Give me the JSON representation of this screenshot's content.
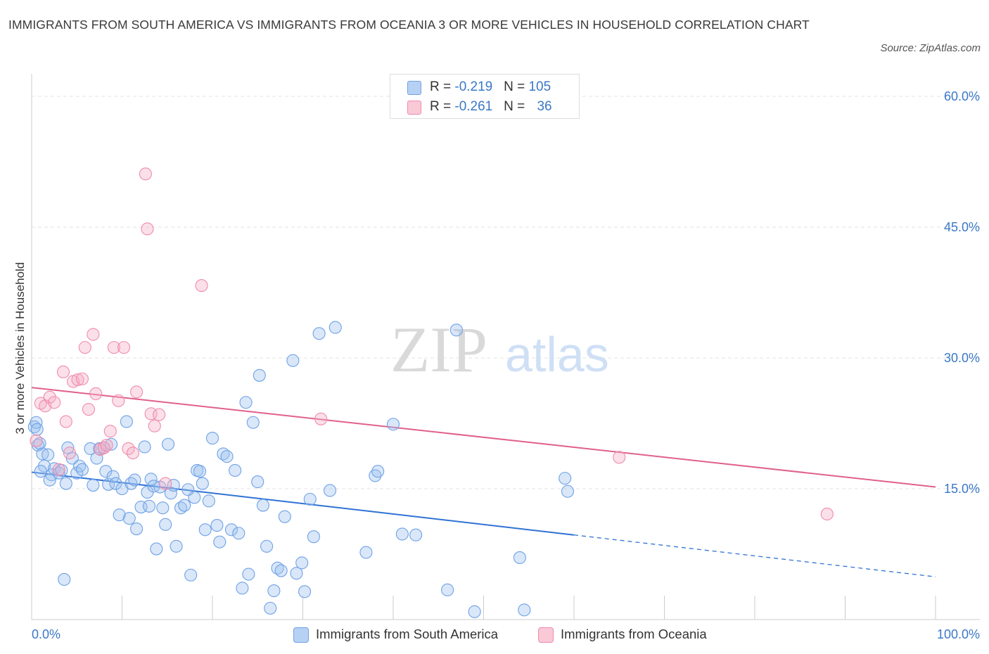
{
  "header": {
    "title": "IMMIGRANTS FROM SOUTH AMERICA VS IMMIGRANTS FROM OCEANIA 3 OR MORE VEHICLES IN HOUSEHOLD CORRELATION CHART",
    "source": "Source: ZipAtlas.com"
  },
  "watermark": {
    "zip": "ZIP",
    "atlas": "atlas"
  },
  "legend": {
    "rows": [
      {
        "r_label": "R = ",
        "r_value": "-0.219",
        "n_label": "N = ",
        "n_value": "105",
        "color": "#9bbff0"
      },
      {
        "r_label": "R = ",
        "r_value": "-0.261",
        "n_label": "N = ",
        "n_value": "36",
        "color": "#f5aec4"
      }
    ]
  },
  "bottom_legend": {
    "items": [
      {
        "label": "Immigrants from South America",
        "color": "#9bbff0"
      },
      {
        "label": "Immigrants from Oceania",
        "color": "#f5aec4"
      }
    ]
  },
  "chart_data": {
    "type": "scatter",
    "title": "IMMIGRANTS FROM SOUTH AMERICA VS IMMIGRANTS FROM OCEANIA 3 OR MORE VEHICLES IN HOUSEHOLD CORRELATION CHART",
    "xlabel": "",
    "ylabel": "3 or more Vehicles in Household",
    "xlim": [
      0,
      100
    ],
    "ylim": [
      0,
      60
    ],
    "x_tick_labels": [
      "0.0%",
      "100.0%"
    ],
    "y_ticks": [
      15,
      30,
      45,
      60
    ],
    "y_tick_labels": [
      "15.0%",
      "30.0%",
      "45.0%",
      "60.0%"
    ],
    "grid": true,
    "legend_position": "top-center",
    "series": [
      {
        "name": "Immigrants from South America",
        "color": "#6fa2e6",
        "r": -0.219,
        "n": 105,
        "trend": {
          "x0": 0,
          "y0": 16.9,
          "x1": 60,
          "y1": 9.7,
          "dashed_to_x": 100,
          "dashed_to_y": 4.9
        },
        "points": [
          [
            0.3,
            22.1
          ],
          [
            0.5,
            22.6
          ],
          [
            0.6,
            21.8
          ],
          [
            0.7,
            20.0
          ],
          [
            0.9,
            20.2
          ],
          [
            1.2,
            19.0
          ],
          [
            1.4,
            17.6
          ],
          [
            1.8,
            18.9
          ],
          [
            2.2,
            16.6
          ],
          [
            2.5,
            17.3
          ],
          [
            3.0,
            16.8
          ],
          [
            3.3,
            17.1
          ],
          [
            3.8,
            15.6
          ],
          [
            4.0,
            19.7
          ],
          [
            4.5,
            18.5
          ],
          [
            5.0,
            16.8
          ],
          [
            5.3,
            17.6
          ],
          [
            5.6,
            17.2
          ],
          [
            6.5,
            19.6
          ],
          [
            6.8,
            15.4
          ],
          [
            7.2,
            18.5
          ],
          [
            7.5,
            19.6
          ],
          [
            8.0,
            19.7
          ],
          [
            8.2,
            17.0
          ],
          [
            8.5,
            15.5
          ],
          [
            9.0,
            16.4
          ],
          [
            9.3,
            15.6
          ],
          [
            9.7,
            12.0
          ],
          [
            10.0,
            15.0
          ],
          [
            10.5,
            22.7
          ],
          [
            10.8,
            11.6
          ],
          [
            11.0,
            15.6
          ],
          [
            11.4,
            16.0
          ],
          [
            11.6,
            10.4
          ],
          [
            12.1,
            12.9
          ],
          [
            12.5,
            19.8
          ],
          [
            12.8,
            14.6
          ],
          [
            13.0,
            13.0
          ],
          [
            13.2,
            16.1
          ],
          [
            13.5,
            15.3
          ],
          [
            13.8,
            8.1
          ],
          [
            14.2,
            15.2
          ],
          [
            14.5,
            12.8
          ],
          [
            14.8,
            10.9
          ],
          [
            15.1,
            20.1
          ],
          [
            15.4,
            14.5
          ],
          [
            15.7,
            15.4
          ],
          [
            16.0,
            8.4
          ],
          [
            16.5,
            12.8
          ],
          [
            16.9,
            13.1
          ],
          [
            17.3,
            14.9
          ],
          [
            17.6,
            5.1
          ],
          [
            18.0,
            14.0
          ],
          [
            18.3,
            17.1
          ],
          [
            18.6,
            17.0
          ],
          [
            18.9,
            15.6
          ],
          [
            19.2,
            10.3
          ],
          [
            19.6,
            13.6
          ],
          [
            20.0,
            20.8
          ],
          [
            20.5,
            10.8
          ],
          [
            20.8,
            8.9
          ],
          [
            21.2,
            19.0
          ],
          [
            21.6,
            18.7
          ],
          [
            22.1,
            10.3
          ],
          [
            22.5,
            17.1
          ],
          [
            22.9,
            9.9
          ],
          [
            23.3,
            3.6
          ],
          [
            23.7,
            24.9
          ],
          [
            24.0,
            5.2
          ],
          [
            24.5,
            22.6
          ],
          [
            25.0,
            15.8
          ],
          [
            25.2,
            28.0
          ],
          [
            25.6,
            13.1
          ],
          [
            26.0,
            8.4
          ],
          [
            26.4,
            1.3
          ],
          [
            26.8,
            3.3
          ],
          [
            27.2,
            5.9
          ],
          [
            27.6,
            5.6
          ],
          [
            28.0,
            11.8
          ],
          [
            28.9,
            29.7
          ],
          [
            29.3,
            5.3
          ],
          [
            29.9,
            6.5
          ],
          [
            30.2,
            3.2
          ],
          [
            30.8,
            13.8
          ],
          [
            31.2,
            9.5
          ],
          [
            31.8,
            32.8
          ],
          [
            33.0,
            14.8
          ],
          [
            33.6,
            33.5
          ],
          [
            37.0,
            7.7
          ],
          [
            38.0,
            16.5
          ],
          [
            38.3,
            17.0
          ],
          [
            40.0,
            22.4
          ],
          [
            41.0,
            9.8
          ],
          [
            42.5,
            9.7
          ],
          [
            46.0,
            3.4
          ],
          [
            47.0,
            33.2
          ],
          [
            49.0,
            0.9
          ],
          [
            54.0,
            7.1
          ],
          [
            54.5,
            1.1
          ],
          [
            59.0,
            16.2
          ],
          [
            59.3,
            14.7
          ],
          [
            1.0,
            17.0
          ],
          [
            2.0,
            16.0
          ],
          [
            3.6,
            4.6
          ],
          [
            8.8,
            20.1
          ]
        ]
      },
      {
        "name": "Immigrants from Oceania",
        "color": "#f08bab",
        "r": -0.261,
        "n": 36,
        "trend": {
          "x0": 0,
          "y0": 26.6,
          "x1": 100,
          "y1": 15.2
        },
        "points": [
          [
            0.5,
            20.5
          ],
          [
            1.0,
            24.8
          ],
          [
            1.5,
            24.5
          ],
          [
            2.0,
            25.5
          ],
          [
            2.5,
            24.9
          ],
          [
            3.0,
            17.2
          ],
          [
            3.5,
            28.4
          ],
          [
            3.8,
            22.7
          ],
          [
            4.2,
            19.1
          ],
          [
            4.6,
            27.3
          ],
          [
            5.1,
            27.5
          ],
          [
            5.6,
            27.6
          ],
          [
            5.9,
            31.2
          ],
          [
            6.3,
            24.1
          ],
          [
            6.8,
            32.7
          ],
          [
            7.1,
            25.9
          ],
          [
            7.6,
            19.5
          ],
          [
            8.0,
            19.7
          ],
          [
            8.3,
            20.0
          ],
          [
            8.7,
            21.6
          ],
          [
            9.1,
            31.2
          ],
          [
            9.6,
            25.1
          ],
          [
            10.2,
            31.2
          ],
          [
            10.7,
            19.6
          ],
          [
            11.2,
            19.1
          ],
          [
            11.6,
            26.1
          ],
          [
            12.6,
            51.1
          ],
          [
            12.8,
            44.8
          ],
          [
            13.2,
            23.6
          ],
          [
            13.6,
            22.2
          ],
          [
            14.1,
            23.5
          ],
          [
            14.8,
            15.6
          ],
          [
            18.8,
            38.3
          ],
          [
            32.0,
            23.0
          ],
          [
            65.0,
            18.6
          ],
          [
            88.0,
            12.1
          ]
        ]
      }
    ]
  }
}
